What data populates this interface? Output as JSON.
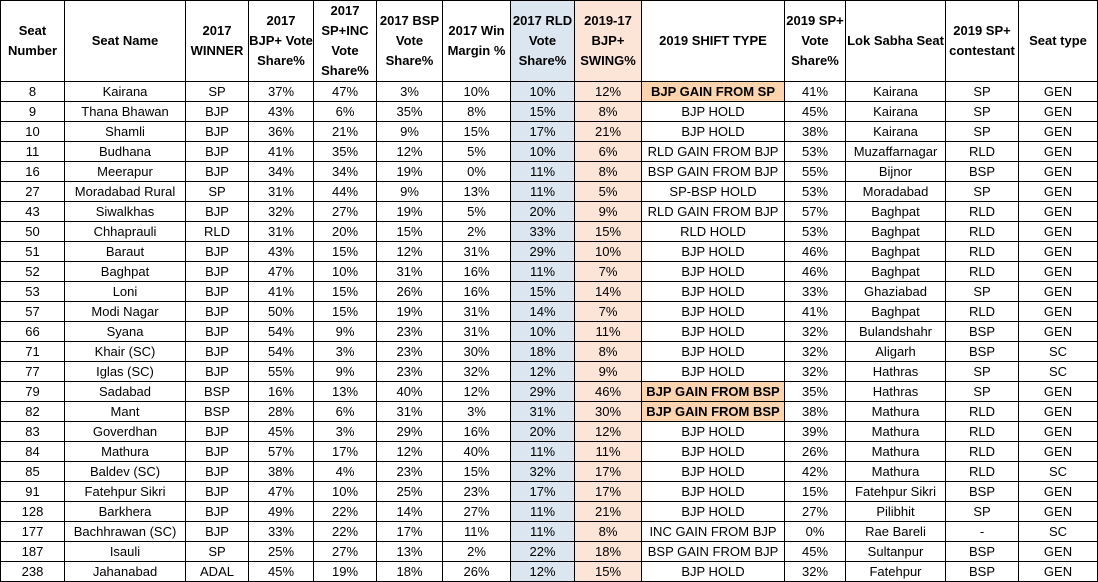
{
  "headers": [
    "Seat Number",
    "Seat Name",
    "2017 WINNER",
    "2017 BJP+ Vote Share%",
    "2017 SP+INC Vote Share%",
    "2017 BSP Vote Share%",
    "2017 Win Margin %",
    "2017 RLD Vote Share%",
    "2019-17 BJP+ SWING%",
    "2019 SHIFT TYPE",
    "2019 SP+ Vote Share%",
    "Lok Sabha Seat",
    "2019 SP+ contestant",
    "Seat type"
  ],
  "colors": {
    "rld_column": "#dce6f1",
    "swing_column": "#fce4d6",
    "gain_highlight": "#fbd3ad"
  },
  "rows": [
    [
      "8",
      "Kairana",
      "SP",
      "37%",
      "47%",
      "3%",
      "10%",
      "10%",
      "12%",
      "BJP GAIN FROM SP",
      "41%",
      "Kairana",
      "SP",
      "GEN"
    ],
    [
      "9",
      "Thana Bhawan",
      "BJP",
      "43%",
      "6%",
      "35%",
      "8%",
      "15%",
      "8%",
      "BJP HOLD",
      "45%",
      "Kairana",
      "SP",
      "GEN"
    ],
    [
      "10",
      "Shamli",
      "BJP",
      "36%",
      "21%",
      "9%",
      "15%",
      "17%",
      "21%",
      "BJP HOLD",
      "38%",
      "Kairana",
      "SP",
      "GEN"
    ],
    [
      "11",
      "Budhana",
      "BJP",
      "41%",
      "35%",
      "12%",
      "5%",
      "10%",
      "6%",
      "RLD GAIN FROM BJP",
      "53%",
      "Muzaffarnagar",
      "RLD",
      "GEN"
    ],
    [
      "16",
      "Meerapur",
      "BJP",
      "34%",
      "34%",
      "19%",
      "0%",
      "11%",
      "8%",
      "BSP GAIN FROM BJP",
      "55%",
      "Bijnor",
      "BSP",
      "GEN"
    ],
    [
      "27",
      "Moradabad Rural",
      "SP",
      "31%",
      "44%",
      "9%",
      "13%",
      "11%",
      "5%",
      "SP-BSP HOLD",
      "53%",
      "Moradabad",
      "SP",
      "GEN"
    ],
    [
      "43",
      "Siwalkhas",
      "BJP",
      "32%",
      "27%",
      "19%",
      "5%",
      "20%",
      "9%",
      "RLD GAIN FROM BJP",
      "57%",
      "Baghpat",
      "RLD",
      "GEN"
    ],
    [
      "50",
      "Chhaprauli",
      "RLD",
      "31%",
      "20%",
      "15%",
      "2%",
      "33%",
      "15%",
      "RLD HOLD",
      "53%",
      "Baghpat",
      "RLD",
      "GEN"
    ],
    [
      "51",
      "Baraut",
      "BJP",
      "43%",
      "15%",
      "12%",
      "31%",
      "29%",
      "10%",
      "BJP HOLD",
      "46%",
      "Baghpat",
      "RLD",
      "GEN"
    ],
    [
      "52",
      "Baghpat",
      "BJP",
      "47%",
      "10%",
      "31%",
      "16%",
      "11%",
      "7%",
      "BJP HOLD",
      "46%",
      "Baghpat",
      "RLD",
      "GEN"
    ],
    [
      "53",
      "Loni",
      "BJP",
      "41%",
      "15%",
      "26%",
      "16%",
      "15%",
      "14%",
      "BJP HOLD",
      "33%",
      "Ghaziabad",
      "SP",
      "GEN"
    ],
    [
      "57",
      "Modi Nagar",
      "BJP",
      "50%",
      "15%",
      "19%",
      "31%",
      "14%",
      "7%",
      "BJP HOLD",
      "41%",
      "Baghpat",
      "RLD",
      "GEN"
    ],
    [
      "66",
      "Syana",
      "BJP",
      "54%",
      "9%",
      "23%",
      "31%",
      "10%",
      "11%",
      "BJP HOLD",
      "32%",
      "Bulandshahr",
      "BSP",
      "GEN"
    ],
    [
      "71",
      "Khair (SC)",
      "BJP",
      "54%",
      "3%",
      "23%",
      "30%",
      "18%",
      "8%",
      "BJP HOLD",
      "32%",
      "Aligarh",
      "BSP",
      "SC"
    ],
    [
      "77",
      "Iglas (SC)",
      "BJP",
      "55%",
      "9%",
      "23%",
      "32%",
      "12%",
      "9%",
      "BJP HOLD",
      "32%",
      "Hathras",
      "SP",
      "SC"
    ],
    [
      "79",
      "Sadabad",
      "BSP",
      "16%",
      "13%",
      "40%",
      "12%",
      "29%",
      "46%",
      "BJP GAIN FROM BSP",
      "35%",
      "Hathras",
      "SP",
      "GEN"
    ],
    [
      "82",
      "Mant",
      "BSP",
      "28%",
      "6%",
      "31%",
      "3%",
      "31%",
      "30%",
      "BJP GAIN FROM BSP",
      "38%",
      "Mathura",
      "RLD",
      "GEN"
    ],
    [
      "83",
      "Goverdhan",
      "BJP",
      "45%",
      "3%",
      "29%",
      "16%",
      "20%",
      "12%",
      "BJP HOLD",
      "39%",
      "Mathura",
      "RLD",
      "GEN"
    ],
    [
      "84",
      "Mathura",
      "BJP",
      "57%",
      "17%",
      "12%",
      "40%",
      "11%",
      "11%",
      "BJP HOLD",
      "26%",
      "Mathura",
      "RLD",
      "GEN"
    ],
    [
      "85",
      "Baldev (SC)",
      "BJP",
      "38%",
      "4%",
      "23%",
      "15%",
      "32%",
      "17%",
      "BJP HOLD",
      "42%",
      "Mathura",
      "RLD",
      "SC"
    ],
    [
      "91",
      "Fatehpur Sikri",
      "BJP",
      "47%",
      "10%",
      "25%",
      "23%",
      "17%",
      "17%",
      "BJP HOLD",
      "15%",
      "Fatehpur Sikri",
      "BSP",
      "GEN"
    ],
    [
      "128",
      "Barkhera",
      "BJP",
      "49%",
      "22%",
      "14%",
      "27%",
      "11%",
      "21%",
      "BJP HOLD",
      "27%",
      "Pilibhit",
      "SP",
      "GEN"
    ],
    [
      "177",
      "Bachhrawan (SC)",
      "BJP",
      "33%",
      "22%",
      "17%",
      "11%",
      "11%",
      "8%",
      "INC GAIN FROM BJP",
      "0%",
      "Rae Bareli",
      "-",
      "SC"
    ],
    [
      "187",
      "Isauli",
      "SP",
      "25%",
      "27%",
      "13%",
      "2%",
      "22%",
      "18%",
      "BSP GAIN FROM BJP",
      "45%",
      "Sultanpur",
      "BSP",
      "GEN"
    ],
    [
      "238",
      "Jahanabad",
      "ADAL",
      "45%",
      "19%",
      "18%",
      "26%",
      "12%",
      "15%",
      "BJP HOLD",
      "32%",
      "Fatehpur",
      "BSP",
      "GEN"
    ]
  ]
}
